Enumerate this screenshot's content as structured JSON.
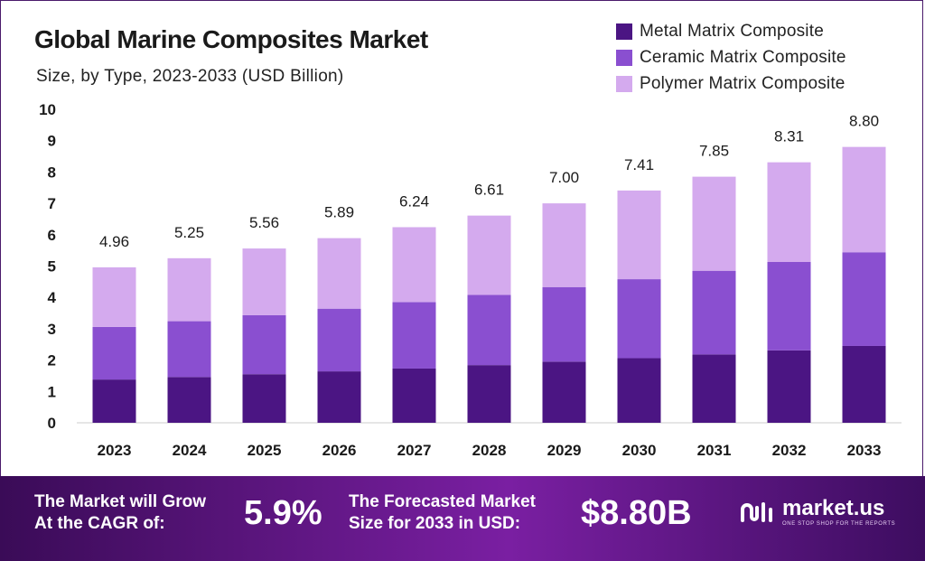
{
  "chart_data": {
    "type": "bar",
    "stacked": true,
    "title": "Global Marine Composites Market",
    "subtitle": "Size, by Type, 2023-2033 (USD Billion)",
    "categories": [
      "2023",
      "2024",
      "2025",
      "2026",
      "2027",
      "2028",
      "2029",
      "2030",
      "2031",
      "2032",
      "2033"
    ],
    "series": [
      {
        "name": "Metal Matrix Composite",
        "color": "#4b1583",
        "values": [
          1.38,
          1.46,
          1.55,
          1.64,
          1.73,
          1.84,
          1.95,
          2.06,
          2.18,
          2.31,
          2.45
        ]
      },
      {
        "name": "Ceramic Matrix Composite",
        "color": "#8a4fd0",
        "values": [
          1.68,
          1.78,
          1.88,
          2.0,
          2.12,
          2.24,
          2.38,
          2.52,
          2.67,
          2.82,
          2.99
        ]
      },
      {
        "name": "Polymer Matrix Composite",
        "color": "#d4aaee",
        "values": [
          1.9,
          2.01,
          2.13,
          2.25,
          2.39,
          2.53,
          2.67,
          2.83,
          3.0,
          3.18,
          3.36
        ]
      }
    ],
    "totals": [
      "4.96",
      "5.25",
      "5.56",
      "5.89",
      "6.24",
      "6.61",
      "7.00",
      "7.41",
      "7.85",
      "8.31",
      "8.80"
    ],
    "ylim": [
      0,
      10
    ],
    "yticks": [
      0,
      1,
      2,
      3,
      4,
      5,
      6,
      7,
      8,
      9,
      10
    ],
    "xlabel": "",
    "ylabel": "",
    "legend_position": "top-right"
  },
  "banner": {
    "cagr_label_line1": "The Market will Grow",
    "cagr_label_line2": "At the CAGR of:",
    "cagr_value": "5.9%",
    "forecast_label_line1": "The Forecasted Market",
    "forecast_label_line2": "Size for 2033 in USD:",
    "forecast_value": "$8.80B",
    "logo_text": "market.us",
    "logo_tagline": "ONE STOP SHOP FOR THE REPORTS"
  },
  "colors": {
    "banner_start": "#3a0b57",
    "banner_mid": "#7a1fa2",
    "metal": "#4b1583",
    "ceramic": "#8a4fd0",
    "polymer": "#d4aaee"
  },
  "icons": {
    "logo": "market-us-logo-icon"
  }
}
